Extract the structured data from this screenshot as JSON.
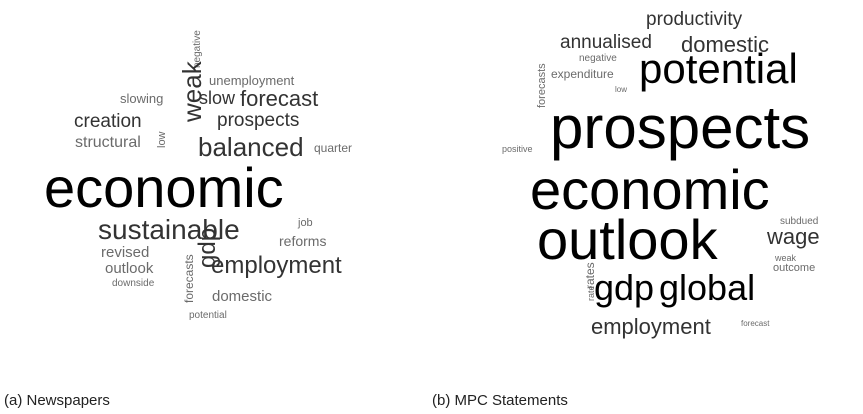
{
  "panels": [
    {
      "caption": "(a) Newspapers",
      "words": [
        {
          "text": "negative",
          "shade": "grey"
        },
        {
          "text": "unemployment",
          "shade": "grey"
        },
        {
          "text": "slowing",
          "shade": "grey"
        },
        {
          "text": "weak",
          "shade": "dark"
        },
        {
          "text": "slow",
          "shade": "dark"
        },
        {
          "text": "forecast",
          "shade": "dark"
        },
        {
          "text": "creation",
          "shade": "dark"
        },
        {
          "text": "prospects",
          "shade": "dark"
        },
        {
          "text": "structural",
          "shade": "grey"
        },
        {
          "text": "low",
          "shade": "grey"
        },
        {
          "text": "balanced",
          "shade": "dark"
        },
        {
          "text": "quarter",
          "shade": "grey"
        },
        {
          "text": "economic",
          "shade": "black"
        },
        {
          "text": "sustainable",
          "shade": "dark"
        },
        {
          "text": "job",
          "shade": "grey"
        },
        {
          "text": "reforms",
          "shade": "grey"
        },
        {
          "text": "revised",
          "shade": "grey"
        },
        {
          "text": "outlook",
          "shade": "grey"
        },
        {
          "text": "downside",
          "shade": "grey"
        },
        {
          "text": "gdp",
          "shade": "dark"
        },
        {
          "text": "employment",
          "shade": "dark"
        },
        {
          "text": "forecasts",
          "shade": "grey"
        },
        {
          "text": "domestic",
          "shade": "grey"
        },
        {
          "text": "potential",
          "shade": "grey"
        }
      ]
    },
    {
      "caption": "(b) MPC Statements",
      "words": [
        {
          "text": "productivity",
          "shade": "dark"
        },
        {
          "text": "annualised",
          "shade": "dark"
        },
        {
          "text": "domestic",
          "shade": "dark"
        },
        {
          "text": "negative",
          "shade": "grey"
        },
        {
          "text": "expenditure",
          "shade": "grey"
        },
        {
          "text": "potential",
          "shade": "black"
        },
        {
          "text": "low",
          "shade": "grey"
        },
        {
          "text": "forecasts",
          "shade": "grey"
        },
        {
          "text": "positive",
          "shade": "grey"
        },
        {
          "text": "prospects",
          "shade": "black"
        },
        {
          "text": "economic",
          "shade": "black"
        },
        {
          "text": "subdued",
          "shade": "grey"
        },
        {
          "text": "outlook",
          "shade": "black"
        },
        {
          "text": "wage",
          "shade": "dark"
        },
        {
          "text": "weak",
          "shade": "grey"
        },
        {
          "text": "outcome",
          "shade": "grey"
        },
        {
          "text": "rates",
          "shade": "grey"
        },
        {
          "text": "rate",
          "shade": "grey"
        },
        {
          "text": "gdp",
          "shade": "black"
        },
        {
          "text": "global",
          "shade": "black"
        },
        {
          "text": "employment",
          "shade": "dark"
        },
        {
          "text": "forecast",
          "shade": "grey"
        }
      ]
    }
  ],
  "colors": {
    "black": "#000000",
    "dark": "#333333",
    "grey": "#6b6b6b"
  }
}
